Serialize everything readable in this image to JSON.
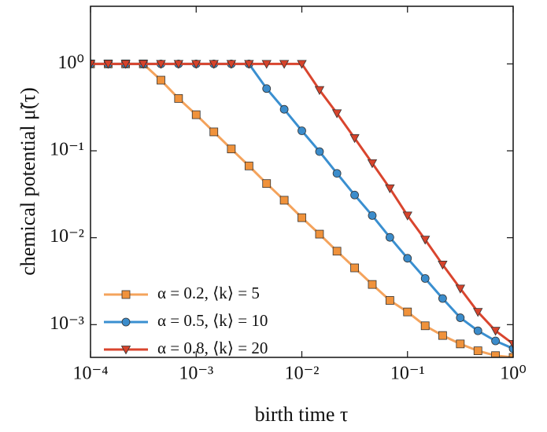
{
  "chart_data": {
    "type": "line",
    "xlabel": "birth time τ",
    "ylabel": "chemical potential μ̃(τ)",
    "log_x": true,
    "log_y": true,
    "x": [
      0.0001,
      0.000147,
      0.000215,
      0.000316,
      0.000464,
      0.000681,
      0.001,
      0.00147,
      0.00215,
      0.00316,
      0.00464,
      0.00681,
      0.01,
      0.0147,
      0.0215,
      0.0316,
      0.0464,
      0.0681,
      0.1,
      0.147,
      0.215,
      0.316,
      0.464,
      0.681,
      1
    ],
    "series": [
      {
        "name": "α = 0.2, ⟨k⟩ = 5",
        "color": "#f0923b",
        "line_color": "#f4a35c",
        "marker": "square",
        "values": [
          1,
          1,
          1,
          1,
          0.65,
          0.4,
          0.26,
          0.165,
          0.105,
          0.067,
          0.042,
          0.027,
          0.017,
          0.011,
          0.007,
          0.0045,
          0.0029,
          0.0019,
          0.0014,
          0.00097,
          0.00075,
          0.0006,
          0.0005,
          0.00044,
          0.00042
        ]
      },
      {
        "name": "α = 0.5, ⟨k⟩ = 10",
        "color": "#3b8ccb",
        "line_color": "#3a8fd0",
        "marker": "circle",
        "values": [
          1,
          1,
          1,
          1,
          1,
          1,
          1,
          1,
          1,
          1,
          0.52,
          0.3,
          0.17,
          0.098,
          0.055,
          0.031,
          0.018,
          0.0101,
          0.0058,
          0.0034,
          0.002,
          0.0012,
          0.00085,
          0.00065,
          0.00053
        ]
      },
      {
        "name": "α = 0.8, ⟨k⟩ = 20",
        "color": "#d6432b",
        "line_color": "#d9452e",
        "marker": "triangle-down",
        "values": [
          1,
          1,
          1,
          1,
          1,
          1,
          1,
          1,
          1,
          1,
          1,
          1,
          1,
          0.5,
          0.27,
          0.14,
          0.072,
          0.037,
          0.018,
          0.0095,
          0.0049,
          0.0026,
          0.0014,
          0.00085,
          0.0006
        ]
      }
    ],
    "xlim": [
      0.0001,
      1
    ],
    "ylim": [
      0.00042,
      4.6
    ],
    "xticks": [
      {
        "value": 0.0001,
        "label": "10⁻⁴"
      },
      {
        "value": 0.001,
        "label": "10⁻³"
      },
      {
        "value": 0.01,
        "label": "10⁻²"
      },
      {
        "value": 0.1,
        "label": "10⁻¹"
      },
      {
        "value": 1,
        "label": "10⁰"
      }
    ],
    "yticks": [
      {
        "value": 0.001,
        "label": "10⁻³"
      },
      {
        "value": 0.01,
        "label": "10⁻²"
      },
      {
        "value": 0.1,
        "label": "10⁻¹"
      },
      {
        "value": 1,
        "label": "10⁰"
      }
    ],
    "legend": "lower left"
  }
}
